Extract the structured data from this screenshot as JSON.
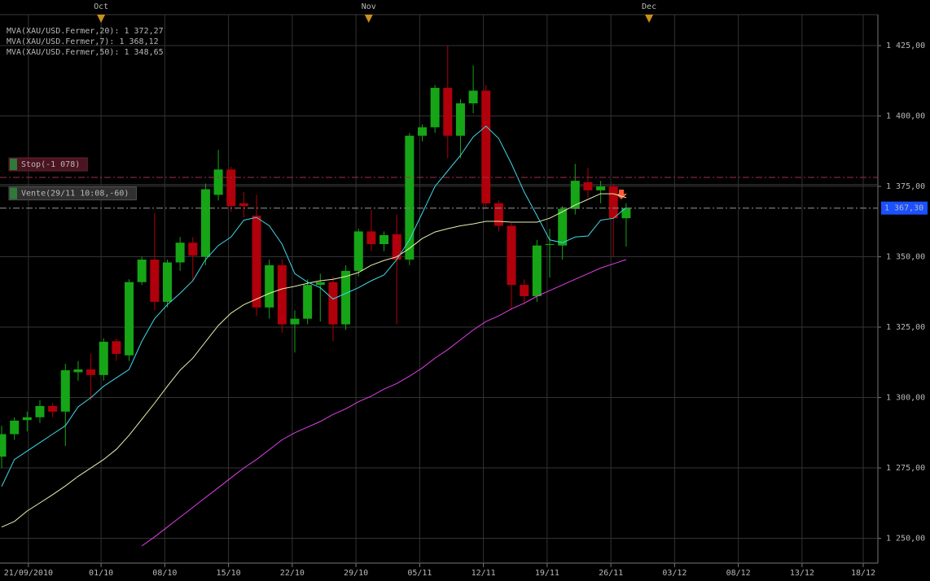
{
  "chart_data": {
    "type": "candlestick",
    "x": [
      0,
      1,
      2,
      3,
      4,
      5,
      6,
      7,
      8,
      9,
      10,
      11,
      12,
      13,
      14,
      15,
      16,
      17,
      18,
      19,
      20,
      21,
      22,
      23,
      24,
      25,
      26,
      27,
      28,
      29,
      30,
      31,
      32,
      33,
      34,
      35,
      36,
      37,
      38,
      39,
      40,
      41,
      42,
      43,
      44,
      45,
      46,
      47,
      48,
      49
    ],
    "open": [
      1279,
      1287,
      1292,
      1293,
      1297,
      1295,
      1309,
      1310,
      1308,
      1320,
      1315,
      1341,
      1349,
      1334,
      1348,
      1355,
      1350,
      1372,
      1381,
      1369,
      1364.6,
      1332,
      1347,
      1326,
      1328,
      1340,
      1341,
      1326,
      1345,
      1359,
      1354.5,
      1358,
      1349,
      1393,
      1396,
      1410,
      1393,
      1404.5,
      1409,
      1369,
      1361,
      1340,
      1336,
      1354.2,
      1354,
      1367,
      1376.5,
      1373.6,
      1375,
      1363.7
    ],
    "high": [
      1290,
      1293,
      1295,
      1299,
      1298,
      1312,
      1313,
      1315.5,
      1321,
      1321,
      1342,
      1350,
      1365.5,
      1349,
      1357,
      1357,
      1376,
      1388,
      1382,
      1373,
      1372,
      1349,
      1349,
      1331,
      1342,
      1344,
      1343,
      1347,
      1360,
      1366.6,
      1359,
      1365,
      1394,
      1397,
      1411,
      1425,
      1406,
      1418,
      1411,
      1370,
      1362,
      1342,
      1356,
      1360,
      1368,
      1383,
      1381.6,
      1377,
      1376,
      1369
    ],
    "low": [
      1275,
      1285,
      1288,
      1291,
      1293,
      1282.8,
      1306,
      1299,
      1306,
      1313,
      1313,
      1340,
      1331,
      1332,
      1345,
      1341.5,
      1347,
      1370,
      1366,
      1364,
      1329,
      1328,
      1323,
      1316,
      1326,
      1327,
      1320,
      1324,
      1343,
      1352,
      1352,
      1326,
      1347,
      1391,
      1394,
      1385,
      1385,
      1401,
      1367,
      1359,
      1331,
      1333,
      1334,
      1342.6,
      1349,
      1365,
      1371,
      1369,
      1350,
      1353.6
    ],
    "close": [
      1287,
      1291.8,
      1293,
      1297,
      1295,
      1309.7,
      1310,
      1308,
      1319.8,
      1315.5,
      1341,
      1349,
      1334,
      1348,
      1355,
      1350.4,
      1374,
      1381,
      1368,
      1368,
      1332,
      1347,
      1326,
      1328,
      1340,
      1341,
      1326,
      1345,
      1359,
      1354.5,
      1357.7,
      1349,
      1393,
      1396,
      1410,
      1393,
      1404.5,
      1409,
      1369,
      1361,
      1340,
      1336,
      1354,
      1354.5,
      1367,
      1377,
      1373.6,
      1375,
      1363.7,
      1367.3
    ],
    "up_color": "#16a516",
    "down_color": "#b0000c",
    "series": [
      {
        "name": "MVA(XAU/USD.Fermer,20): 1 372,27",
        "color": "#e8f0b0",
        "values": [
          1254,
          1256,
          1259.7,
          1262.6,
          1265.5,
          1268.6,
          1272,
          1275,
          1278,
          1281.6,
          1286.6,
          1292.3,
          1298,
          1304,
          1309.7,
          1314,
          1319.8,
          1325.6,
          1330,
          1333,
          1335,
          1337,
          1338.6,
          1339.5,
          1340.6,
          1341.5,
          1342,
          1343,
          1344.4,
          1347,
          1348.7,
          1350,
          1353,
          1356.5,
          1358.8,
          1360,
          1361,
          1361.7,
          1362.6,
          1362.6,
          1362.3,
          1362.3,
          1362.3,
          1363.7,
          1366,
          1368.4,
          1370.4,
          1372.4,
          1372.4,
          1371
        ]
      },
      {
        "name": "MVA(XAU/USD.Fermer,7): 1 368,12",
        "color": "#3fd8e8",
        "values": [
          1268.4,
          1278,
          1281,
          1284,
          1287,
          1290,
          1296.7,
          1300,
          1304,
          1307,
          1310,
          1320,
          1328,
          1333,
          1337,
          1341.5,
          1349,
          1354,
          1357,
          1363,
          1364,
          1361,
          1354.5,
          1344,
          1341,
          1339,
          1335,
          1337,
          1339,
          1341.5,
          1343.5,
          1349,
          1356,
          1365.5,
          1375,
          1380.5,
          1386,
          1392.6,
          1396.4,
          1392,
          1383,
          1373,
          1364.6,
          1356,
          1355,
          1357,
          1357.4,
          1363,
          1363.7,
          1367.5
        ]
      },
      {
        "name": "MVA(XAU/USD.Fermer,50): 1 348,65",
        "color": "#e040e8",
        "values": [
          null,
          null,
          null,
          null,
          null,
          null,
          null,
          null,
          null,
          null,
          null,
          1247.3,
          1250.5,
          1254,
          1257.5,
          1261,
          1264.5,
          1268,
          1271.5,
          1275,
          1278,
          1281.5,
          1285,
          1287.5,
          1289.5,
          1291.5,
          1294,
          1296,
          1298.5,
          1300.5,
          1303,
          1305,
          1307.6,
          1310.5,
          1314,
          1317,
          1320.5,
          1324,
          1327,
          1329,
          1331.5,
          1333.5,
          1336,
          1338,
          1340,
          1342,
          1344,
          1346,
          1347.5,
          1349
        ]
      }
    ],
    "xlim": [
      -0.13,
      68.75
    ],
    "ylim": [
      1241.2,
      1436
    ],
    "xticks": [
      {
        "value": 2.1,
        "label": "21/09/2010"
      },
      {
        "value": 7.8,
        "label": "01/10"
      },
      {
        "value": 12.8,
        "label": "08/10"
      },
      {
        "value": 17.8,
        "label": "15/10"
      },
      {
        "value": 22.8,
        "label": "22/10"
      },
      {
        "value": 27.8,
        "label": "29/10"
      },
      {
        "value": 32.8,
        "label": "05/11"
      },
      {
        "value": 37.8,
        "label": "12/11"
      },
      {
        "value": 42.8,
        "label": "19/11"
      },
      {
        "value": 47.8,
        "label": "26/11"
      },
      {
        "value": 52.8,
        "label": "03/12"
      },
      {
        "value": 57.8,
        "label": "08/12"
      },
      {
        "value": 62.8,
        "label": "13/12"
      },
      {
        "value": 67.6,
        "label": "18/12"
      }
    ],
    "month_ticks": [
      {
        "value": 7.8,
        "label": "Oct"
      },
      {
        "value": 28.8,
        "label": "Nov"
      },
      {
        "value": 50.8,
        "label": "Dec"
      }
    ],
    "yticks": [
      {
        "value": 1250,
        "label": "1 250,00"
      },
      {
        "value": 1275,
        "label": "1 275,00"
      },
      {
        "value": 1300,
        "label": "1 300,00"
      },
      {
        "value": 1325,
        "label": "1 325,00"
      },
      {
        "value": 1350,
        "label": "1 350,00"
      },
      {
        "value": 1375,
        "label": "1 375,00"
      },
      {
        "value": 1400,
        "label": "1 400,00"
      },
      {
        "value": 1425,
        "label": "1 425,00"
      }
    ],
    "grid": true,
    "orders": [
      {
        "label": "Stop(-1 078)",
        "value": 1378.2,
        "color": "#a03048"
      },
      {
        "label": "Vente(29/11 10:08,-60)",
        "value": 1367.3,
        "color": "#8a8a8a"
      }
    ],
    "last_price": {
      "value": 1367.3,
      "label": "1 367,30",
      "color": "#1a50ff"
    }
  }
}
